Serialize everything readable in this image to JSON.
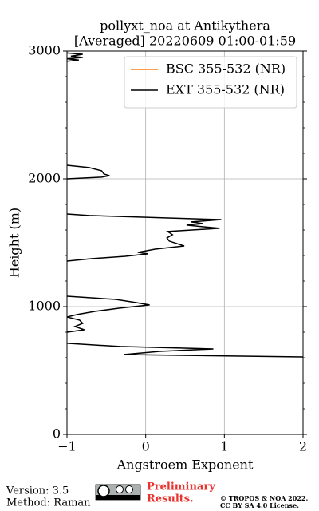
{
  "chart_data": {
    "type": "line",
    "title": "pollyxt_noa at Antikythera",
    "subtitle": "[Averaged] 20220609 01:00-01:59",
    "x_label": "Angstroem Exponent",
    "y_label": "Height (m)",
    "xlim": [
      -1,
      2
    ],
    "ylim": [
      0,
      3000
    ],
    "xticks": [
      {
        "value": -1,
        "label": "−1"
      },
      0,
      1,
      2
    ],
    "yticks": [
      0,
      1000,
      2000,
      3000
    ],
    "yminorticks": [
      200,
      400,
      600,
      800,
      1200,
      1400,
      1600,
      1800,
      2200,
      2400,
      2600,
      2800
    ],
    "grid": true,
    "legend": "upper right",
    "series": [
      {
        "name": "BSC 355-532 (NR)",
        "color": "#ff7f0e",
        "x": [],
        "y": []
      },
      {
        "name": "EXT 355-532 (NR)",
        "color": "#000000",
        "x": [
          -1,
          -0.8,
          -0.95,
          -0.8,
          -1,
          -0.85,
          -1,
          null,
          -1,
          -0.72,
          -0.56,
          -0.53,
          -0.46,
          -0.56,
          -1,
          null,
          -1,
          -0.72,
          0.96,
          0.58,
          0.73,
          0.52,
          0.94,
          0.28,
          0.34,
          0.27,
          0.3,
          0.49,
          0.12,
          -0.1,
          0.03,
          -0.26,
          -0.69,
          -1,
          null,
          -1,
          -0.38,
          -0.12,
          0.05,
          -0.33,
          -0.64,
          -0.87,
          -1,
          -0.84,
          -0.8,
          -0.9,
          -0.78,
          -1,
          null,
          -1,
          -0.33,
          0.86,
          0.18,
          -0.28,
          2.0
        ],
        "y": [
          2985,
          2975,
          2960,
          2950,
          2940,
          2930,
          2920,
          null,
          2106,
          2088,
          2063,
          2038,
          2025,
          2013,
          2000,
          null,
          1725,
          1713,
          1681,
          1663,
          1650,
          1638,
          1613,
          1588,
          1563,
          1538,
          1513,
          1475,
          1450,
          1425,
          1413,
          1394,
          1375,
          1356,
          null,
          1081,
          1056,
          1031,
          1013,
          988,
          963,
          938,
          919,
          894,
          869,
          844,
          819,
          800,
          null,
          713,
          688,
          669,
          650,
          625,
          606
        ]
      }
    ]
  },
  "footer": {
    "version": "Version: 3.5",
    "method": "Method: Raman",
    "preliminary": [
      "Preliminary",
      "Results."
    ],
    "copyright": [
      "© TROPOS & NOA 2022.",
      "CC BY SA 4.0 License."
    ]
  }
}
